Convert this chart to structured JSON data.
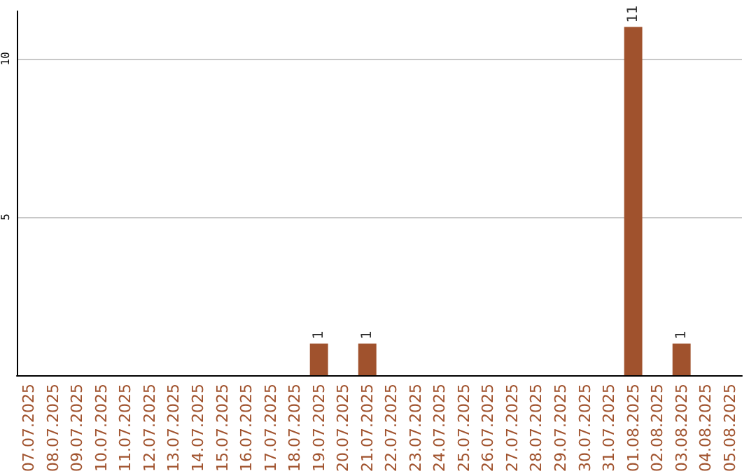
{
  "chart_data": {
    "type": "bar",
    "categories": [
      "07.07.2025",
      "08.07.2025",
      "09.07.2025",
      "10.07.2025",
      "11.07.2025",
      "12.07.2025",
      "13.07.2025",
      "14.07.2025",
      "15.07.2025",
      "16.07.2025",
      "17.07.2025",
      "18.07.2025",
      "19.07.2025",
      "20.07.2025",
      "21.07.2025",
      "22.07.2025",
      "23.07.2025",
      "24.07.2025",
      "25.07.2025",
      "26.07.2025",
      "27.07.2025",
      "28.07.2025",
      "29.07.2025",
      "30.07.2025",
      "31.07.2025",
      "01.08.2025",
      "02.08.2025",
      "03.08.2025",
      "04.08.2025",
      "05.08.2025"
    ],
    "values": [
      0,
      0,
      0,
      0,
      0,
      0,
      0,
      0,
      0,
      0,
      0,
      0,
      1,
      0,
      1,
      0,
      0,
      0,
      0,
      0,
      0,
      0,
      0,
      0,
      0,
      11,
      0,
      1,
      0,
      0
    ],
    "value_labels": [
      null,
      null,
      null,
      null,
      null,
      null,
      null,
      null,
      null,
      null,
      null,
      null,
      "1",
      null,
      "1",
      null,
      null,
      null,
      null,
      null,
      null,
      null,
      null,
      null,
      null,
      "11",
      null,
      "1",
      null,
      null
    ],
    "color": "#a0522d",
    "ylim": [
      0,
      11.5
    ],
    "yticks": [
      5,
      10
    ],
    "grid": "y"
  }
}
